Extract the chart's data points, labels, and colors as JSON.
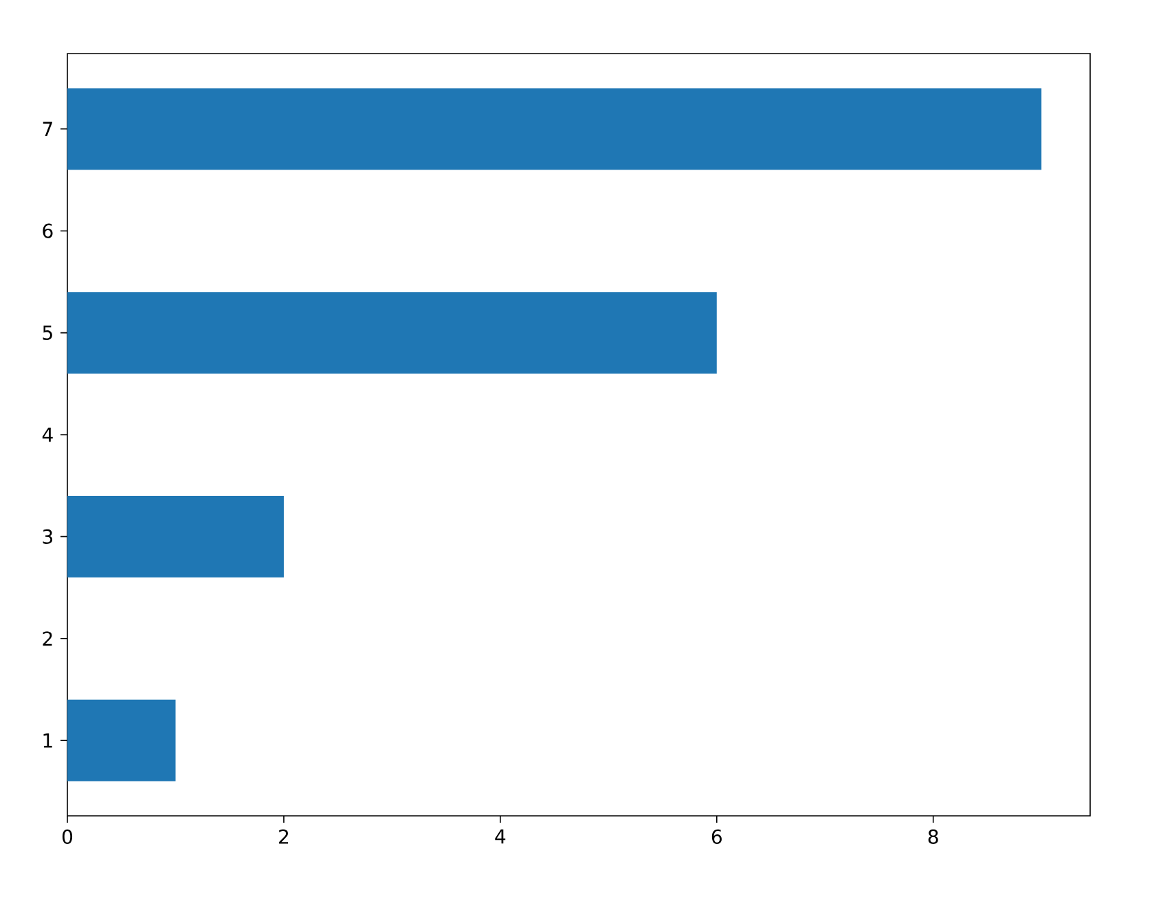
{
  "chart_data": {
    "type": "bar",
    "orientation": "horizontal",
    "categories": [
      "7",
      "6",
      "5",
      "4",
      "3",
      "2",
      "1"
    ],
    "values": [
      9,
      null,
      6,
      null,
      2,
      null,
      1
    ],
    "color": "#1f77b4",
    "xlim": [
      0,
      9.45
    ],
    "xticks": [
      0,
      2,
      4,
      6,
      8
    ]
  }
}
